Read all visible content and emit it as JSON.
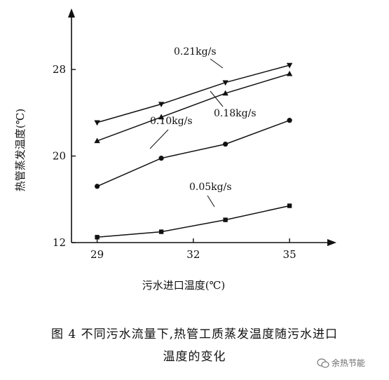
{
  "chart_data": {
    "type": "line",
    "xlabel": "污水进口温度(℃)",
    "ylabel": "热管蒸发温度(℃)",
    "xlim": [
      28.2,
      36.2
    ],
    "ylim": [
      12,
      33
    ],
    "x_ticks": [
      29,
      32,
      35
    ],
    "x_tick_labels": [
      "29",
      "32",
      "35"
    ],
    "y_ticks": [
      12,
      20,
      28
    ],
    "y_tick_labels": [
      "12",
      "20",
      "28"
    ],
    "grid": false,
    "series": [
      {
        "name": "0.21kg/s",
        "marker": "triangle-down",
        "x": [
          29,
          31,
          33,
          35
        ],
        "y": [
          23.1,
          24.8,
          26.8,
          28.4
        ]
      },
      {
        "name": "0.18kg/s",
        "marker": "triangle-up",
        "x": [
          29,
          31,
          33,
          35
        ],
        "y": [
          21.4,
          23.6,
          25.8,
          27.6
        ]
      },
      {
        "name": "0.10kg/s",
        "marker": "circle",
        "x": [
          29,
          31,
          33,
          35
        ],
        "y": [
          17.2,
          19.8,
          21.1,
          23.3
        ]
      },
      {
        "name": "0.05kg/s",
        "marker": "square",
        "x": [
          29,
          31,
          33,
          35
        ],
        "y": [
          12.5,
          13.0,
          14.1,
          15.4
        ]
      }
    ]
  },
  "caption": {
    "line1": "图 4   不同污水流量下,热管工质蒸发温度随污水进口",
    "line2": "温度的变化"
  },
  "watermark": {
    "text": "余热节能"
  }
}
